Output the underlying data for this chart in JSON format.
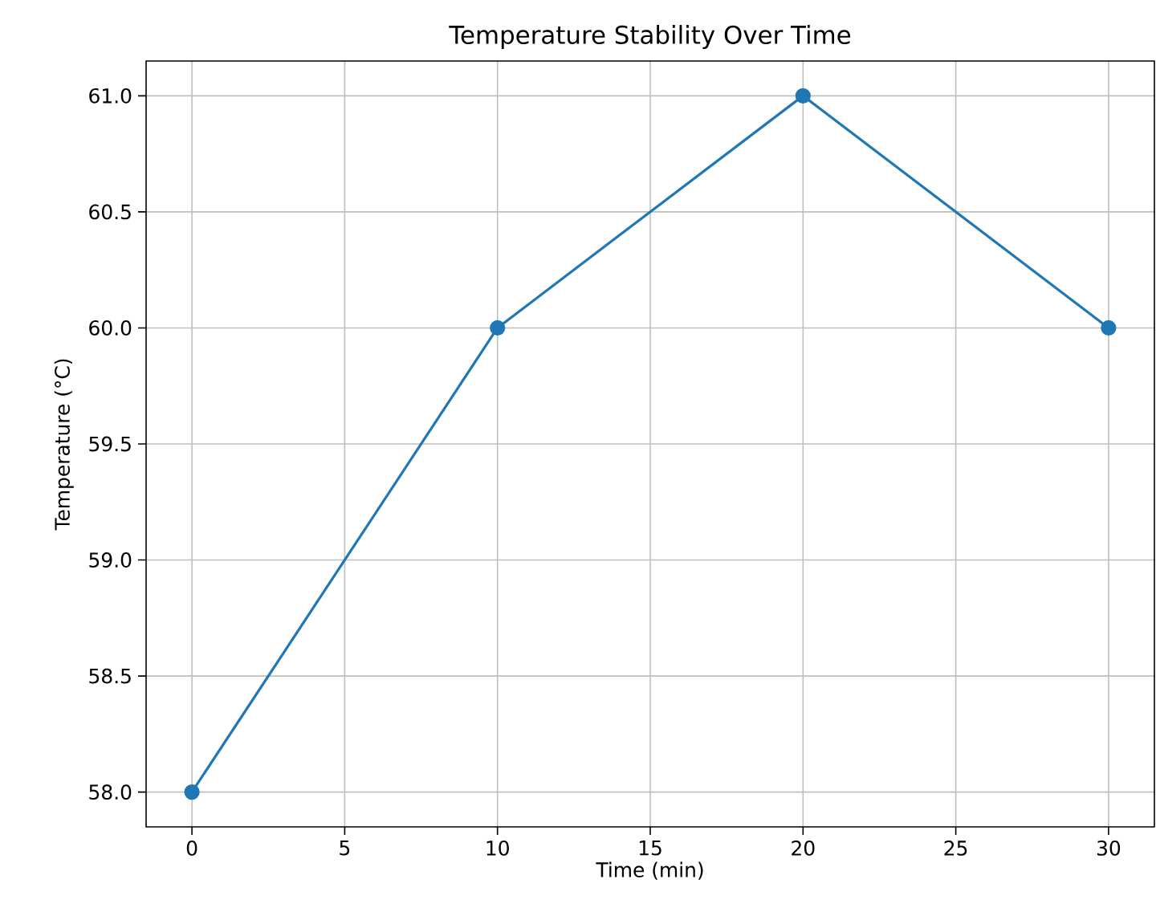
{
  "chart_data": {
    "type": "line",
    "title": "Temperature Stability Over Time",
    "xlabel": "Time (min)",
    "ylabel": "Temperature (°C)",
    "x": [
      0,
      10,
      20,
      30
    ],
    "series": [
      {
        "color": "#1f77b4",
        "values": [
          58.0,
          60.0,
          61.0,
          60.0
        ]
      }
    ],
    "xlim": [
      -1.5,
      31.5
    ],
    "ylim": [
      57.85,
      61.15
    ],
    "xticks": [
      0,
      5,
      10,
      15,
      20,
      25,
      30
    ],
    "yticks": [
      {
        "value": 58.0,
        "label": "58.0"
      },
      {
        "value": 58.5,
        "label": "58.5"
      },
      {
        "value": 59.0,
        "label": "59.0"
      },
      {
        "value": 59.5,
        "label": "59.5"
      },
      {
        "value": 60.0,
        "label": "60.0"
      },
      {
        "value": 60.5,
        "label": "60.5"
      },
      {
        "value": 61.0,
        "label": "61.0"
      }
    ],
    "grid": true,
    "marker": "circle",
    "line_style": "solid"
  }
}
